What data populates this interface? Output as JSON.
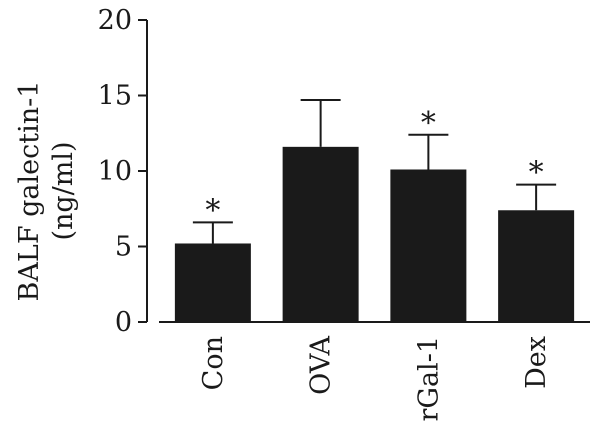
{
  "chart_data": {
    "type": "bar",
    "categories": [
      "Con",
      "OVA",
      "rGal-1",
      "Dex"
    ],
    "values": [
      5.2,
      11.6,
      10.1,
      7.4
    ],
    "errors": [
      1.4,
      3.1,
      2.3,
      1.7
    ],
    "significance": [
      "*",
      "",
      "*",
      "*"
    ],
    "ylabel_lines": [
      "BALF galectin-1",
      "(ng/ml)"
    ],
    "ylim": [
      0,
      20
    ],
    "yticks": [
      0,
      5,
      10,
      15,
      20
    ],
    "bar_color": "#1a1a1a",
    "grid": false
  }
}
